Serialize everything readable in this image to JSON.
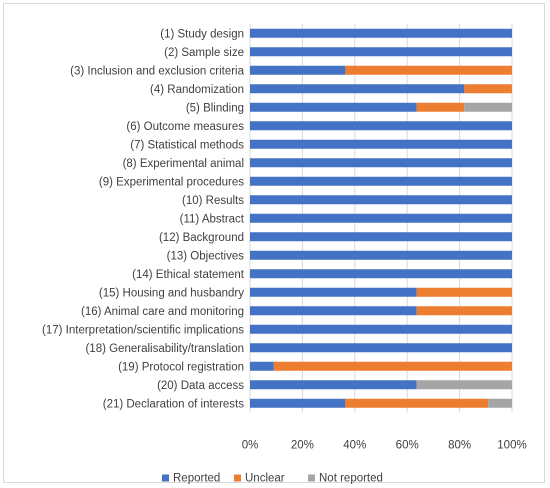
{
  "chart_data": {
    "type": "bar",
    "orientation": "horizontal",
    "stacked": true,
    "percent": true,
    "categories": [
      "(1) Study design",
      "(2) Sample size",
      "(3) Inclusion and exclusion criteria",
      "(4) Randomization",
      "(5) Blinding",
      "(6) Outcome measures",
      "(7) Statistical methods",
      "(8) Experimental animal",
      "(9) Experimental procedures",
      "(10) Results",
      "(11) Abstract",
      "(12) Background",
      "(13) Objectives",
      "(14) Ethical statement",
      "(15) Housing and husbandry",
      "(16) Animal care and monitoring",
      "(17) Interpretation/scientific implications",
      "(18) Generalisability/translation",
      "(19) Protocol registration",
      "(20) Data access",
      "(21) Declaration of interests"
    ],
    "series": [
      {
        "name": "Reported",
        "color": "#4472c4",
        "values": [
          100,
          100,
          36.4,
          81.8,
          63.6,
          100,
          100,
          100,
          100,
          100,
          100,
          100,
          100,
          100,
          63.6,
          63.6,
          100,
          100,
          9.1,
          63.6,
          36.4
        ]
      },
      {
        "name": "Unclear",
        "color": "#ed7d31",
        "values": [
          0,
          0,
          63.6,
          18.2,
          18.2,
          0,
          0,
          0,
          0,
          0,
          0,
          0,
          0,
          0,
          36.4,
          36.4,
          0,
          0,
          90.9,
          0,
          54.5
        ]
      },
      {
        "name": "Not reported",
        "color": "#a5a5a5",
        "values": [
          0,
          0,
          0,
          0,
          18.2,
          0,
          0,
          0,
          0,
          0,
          0,
          0,
          0,
          0,
          0,
          0,
          0,
          0,
          0,
          36.4,
          9.1
        ]
      }
    ],
    "xticks": [
      "0%",
      "20%",
      "40%",
      "60%",
      "80%",
      "100%"
    ],
    "xlim": [
      0,
      100
    ],
    "grid": true,
    "legend_position": "bottom",
    "title": "",
    "xlabel": "",
    "ylabel": ""
  }
}
